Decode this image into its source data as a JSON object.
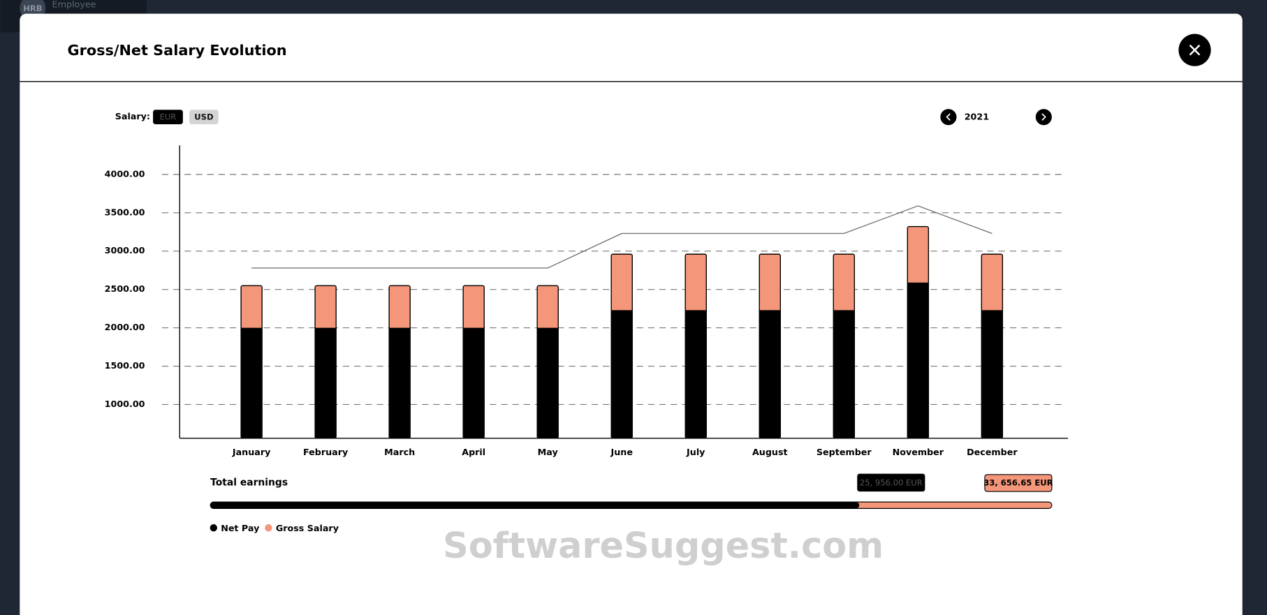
{
  "app": {
    "brand": "HRB",
    "nav_label": "Employee"
  },
  "modal": {
    "title": "Gross/Net Salary Evolution",
    "salary_label": "Salary:",
    "currencies": [
      "EUR",
      "USD"
    ],
    "year": "2021",
    "total_label": "Total earnings",
    "watermark": "SoftwareSuggest.com"
  },
  "chart_data": {
    "type": "bar",
    "categories": [
      "January",
      "February",
      "March",
      "April",
      "May",
      "June",
      "July",
      "August",
      "September",
      "November",
      "December"
    ],
    "series": [
      {
        "name": "Net Pay",
        "color": "#000000",
        "values": [
          2000,
          2000,
          2000,
          2000,
          2000,
          2230,
          2230,
          2230,
          2230,
          2590,
          2230
        ]
      },
      {
        "name": "Gross Salary",
        "color": "#f4967a",
        "values": [
          2550,
          2550,
          2550,
          2550,
          2550,
          2960,
          2960,
          2960,
          2960,
          3320,
          2960
        ]
      }
    ],
    "line": {
      "color": "#777777",
      "values": [
        2780,
        2780,
        2780,
        2780,
        2780,
        3230,
        3230,
        3230,
        3230,
        3590,
        3230
      ]
    },
    "ylim": [
      560,
      4380
    ],
    "yticks": [
      {
        "value": 1000,
        "label": "1000.00"
      },
      {
        "value": 1500,
        "label": "1500.00"
      },
      {
        "value": 2000,
        "label": "2000.00"
      },
      {
        "value": 2500,
        "label": "2500.00"
      },
      {
        "value": 3000,
        "label": "3000.00"
      },
      {
        "value": 3500,
        "label": "3500.00"
      },
      {
        "value": 4000,
        "label": "4000.00"
      }
    ],
    "grid": true,
    "totals": [
      {
        "value": 25956,
        "label": "25, 956.00 EUR"
      },
      {
        "value": 33656.65,
        "label": "33, 656.65 EUR"
      }
    ]
  }
}
